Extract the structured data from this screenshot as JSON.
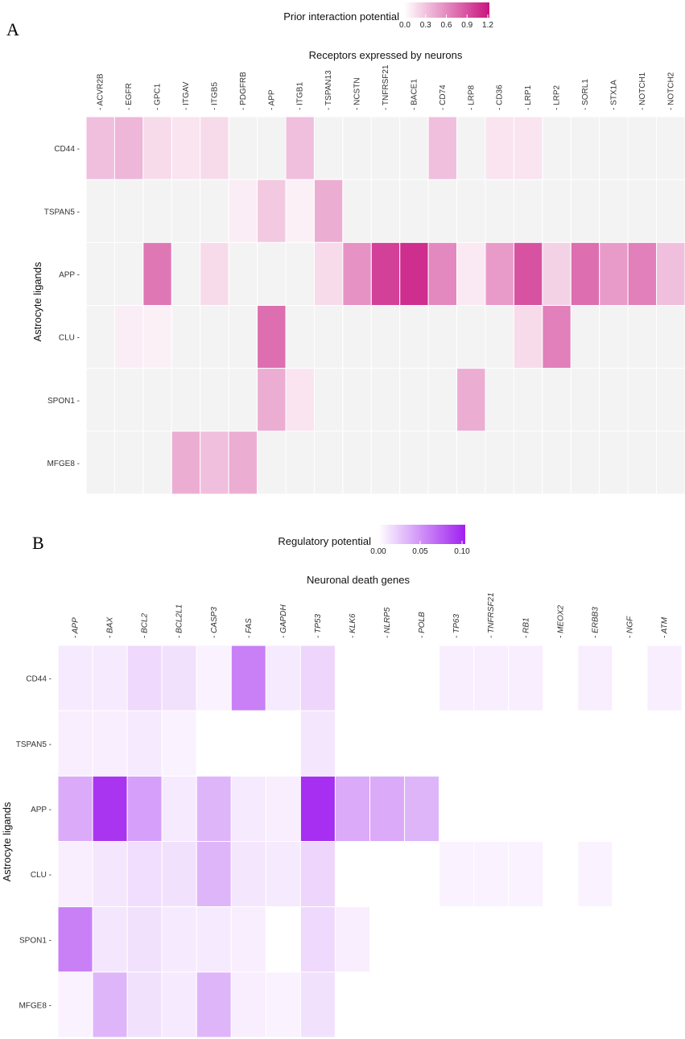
{
  "panels": {
    "A": {
      "letter": "A",
      "legend_title": "Prior interaction potential",
      "legend_ticks": [
        "0.0",
        "0.3",
        "0.6",
        "0.9",
        "1.2"
      ],
      "legend_tick_values": [
        0.0,
        0.3,
        0.6,
        0.9,
        1.2
      ],
      "colors": {
        "low": "#ffffff",
        "high": "#c8137f",
        "na": "#f3f3f3"
      }
    },
    "B": {
      "letter": "B",
      "legend_title": "Regulatory potential",
      "legend_ticks": [
        "0.00",
        "0.05",
        "0.10"
      ],
      "legend_tick_values": [
        0.0,
        0.05,
        0.1
      ],
      "colors": {
        "low": "#ffffff",
        "high": "#a020f0",
        "na": "#ffffff"
      }
    }
  },
  "chart_data": [
    {
      "type": "heatmap",
      "panel": "A",
      "title": "Receptors expressed by neurons",
      "xlabel": "Receptors expressed by neurons",
      "ylabel": "Astrocyte ligands",
      "legend_title": "Prior interaction potential",
      "scale_range": [
        0,
        1.3
      ],
      "columns": [
        "ACVR2B",
        "EGFR",
        "GPC1",
        "ITGAV",
        "ITGB5",
        "PDGFRB",
        "APP",
        "ITGB1",
        "TSPAN13",
        "NCSTN",
        "TNFRSF21",
        "BACE1",
        "CD74",
        "LRP8",
        "CD36",
        "LRP1",
        "LRP2",
        "SORL1",
        "STX1A",
        "NOTCH1",
        "NOTCH2"
      ],
      "rows": [
        "CD44",
        "TSPAN5",
        "APP",
        "CLU",
        "SPON1",
        "MFGE8"
      ],
      "values": [
        [
          0.35,
          0.4,
          0.2,
          0.15,
          0.2,
          null,
          null,
          0.35,
          null,
          null,
          null,
          null,
          0.35,
          null,
          0.15,
          0.15,
          null,
          null,
          null,
          null,
          null
        ],
        [
          null,
          null,
          null,
          null,
          null,
          0.1,
          0.3,
          0.08,
          0.45,
          null,
          null,
          null,
          null,
          null,
          null,
          null,
          null,
          null,
          null,
          null,
          null
        ],
        [
          null,
          null,
          0.75,
          null,
          0.2,
          null,
          null,
          null,
          0.2,
          0.6,
          1.05,
          1.15,
          0.65,
          0.12,
          0.55,
          0.95,
          0.25,
          0.8,
          0.55,
          0.7,
          0.35
        ],
        [
          null,
          0.1,
          0.08,
          null,
          null,
          null,
          0.8,
          null,
          null,
          null,
          null,
          null,
          null,
          null,
          null,
          0.2,
          0.7,
          null,
          null,
          null,
          null
        ],
        [
          null,
          null,
          null,
          null,
          null,
          null,
          0.45,
          0.15,
          null,
          null,
          null,
          null,
          null,
          0.45,
          null,
          null,
          null,
          null,
          null,
          null,
          null
        ],
        [
          null,
          null,
          null,
          0.45,
          0.35,
          0.45,
          null,
          null,
          null,
          null,
          null,
          null,
          null,
          null,
          null,
          null,
          null,
          null,
          null,
          null,
          null
        ]
      ]
    },
    {
      "type": "heatmap",
      "panel": "B",
      "title": "Neuronal death genes",
      "xlabel": "Neuronal death genes",
      "ylabel": "Astrocyte ligands",
      "legend_title": "Regulatory potential",
      "scale_range": [
        0,
        0.105
      ],
      "columns": [
        "APP",
        "BAX",
        "BCL2",
        "BCL2L1",
        "CASP3",
        "FAS",
        "GAPDH",
        "TP53",
        "KLK6",
        "NLRP5",
        "POLB",
        "TP63",
        "TNFRSF21",
        "RB1",
        "MEOX2",
        "ERBB3",
        "NGF",
        "ATM"
      ],
      "rows": [
        "CD44",
        "TSPAN5",
        "APP",
        "CLU",
        "SPON1",
        "MFGE8"
      ],
      "values": [
        [
          0.01,
          0.01,
          0.018,
          0.014,
          0.006,
          0.06,
          0.01,
          0.02,
          null,
          null,
          null,
          0.008,
          0.008,
          0.008,
          null,
          0.008,
          null,
          0.008
        ],
        [
          0.008,
          0.008,
          0.01,
          0.006,
          null,
          null,
          null,
          0.012,
          null,
          null,
          null,
          null,
          null,
          null,
          null,
          null,
          null,
          null
        ],
        [
          0.04,
          0.095,
          0.045,
          0.01,
          0.035,
          0.01,
          0.008,
          0.098,
          0.04,
          0.04,
          0.035,
          null,
          null,
          null,
          null,
          null,
          null,
          null
        ],
        [
          0.008,
          0.012,
          0.016,
          0.014,
          0.035,
          0.012,
          0.01,
          0.02,
          null,
          null,
          null,
          0.006,
          0.006,
          0.006,
          null,
          0.006,
          null,
          null
        ],
        [
          0.06,
          0.012,
          0.014,
          0.01,
          0.01,
          0.008,
          null,
          0.018,
          0.008,
          null,
          null,
          null,
          null,
          null,
          null,
          null,
          null,
          null
        ],
        [
          0.006,
          0.035,
          0.014,
          0.01,
          0.035,
          0.008,
          0.006,
          0.014,
          null,
          null,
          null,
          null,
          null,
          null,
          null,
          null,
          null,
          null
        ]
      ]
    }
  ]
}
